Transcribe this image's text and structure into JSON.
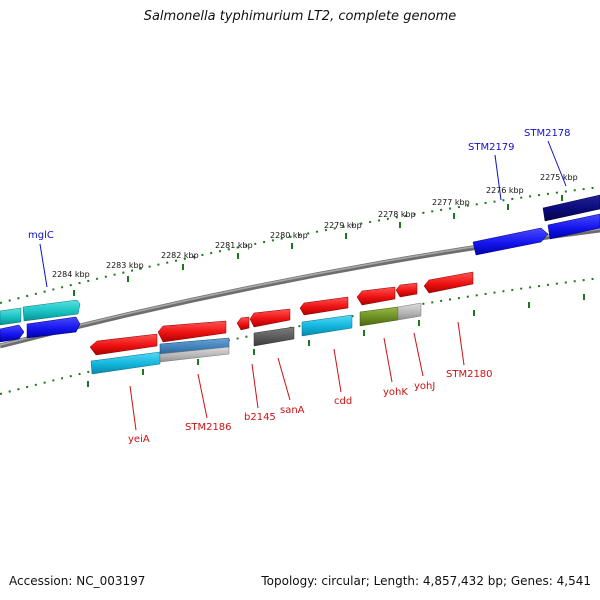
{
  "title": "Salmonella typhimurium LT2, complete genome",
  "footer": {
    "accession": "Accession: NC_003197",
    "topology": "Topology: circular; Length: 4,857,432 bp; Genes: 4,541"
  },
  "scale_labels": [
    {
      "text": "2284 kbp"
    },
    {
      "text": "2283 kbp"
    },
    {
      "text": "2282 kbp"
    },
    {
      "text": "2281 kbp"
    },
    {
      "text": "2280 kbp"
    },
    {
      "text": "2279 kbp"
    },
    {
      "text": "2278 kbp"
    },
    {
      "text": "2277 kbp"
    },
    {
      "text": "2276 kbp"
    },
    {
      "text": "2275 kbp"
    }
  ],
  "gene_labels": {
    "forward": [
      "mglC",
      "STM2179",
      "STM2178"
    ],
    "reverse": [
      "yeiA",
      "STM2186",
      "b2145",
      "sanA",
      "cdd",
      "yohK",
      "yohJ",
      "STM2180"
    ]
  },
  "colors": {
    "forward_label": "#1010cc",
    "reverse_label": "#cc1111",
    "ring": "#888888",
    "tick": "#1a7a1a",
    "red": "#ee1111",
    "blue": "#1515ee",
    "navy": "#0a0a77",
    "cyan": "#12b5dd",
    "teal": "#17c2c2",
    "dark_gray": "#5a5a5a",
    "olive": "#6b8f22",
    "light_gray": "#b8b8b8",
    "steel_blue": "#3f7fb8"
  }
}
